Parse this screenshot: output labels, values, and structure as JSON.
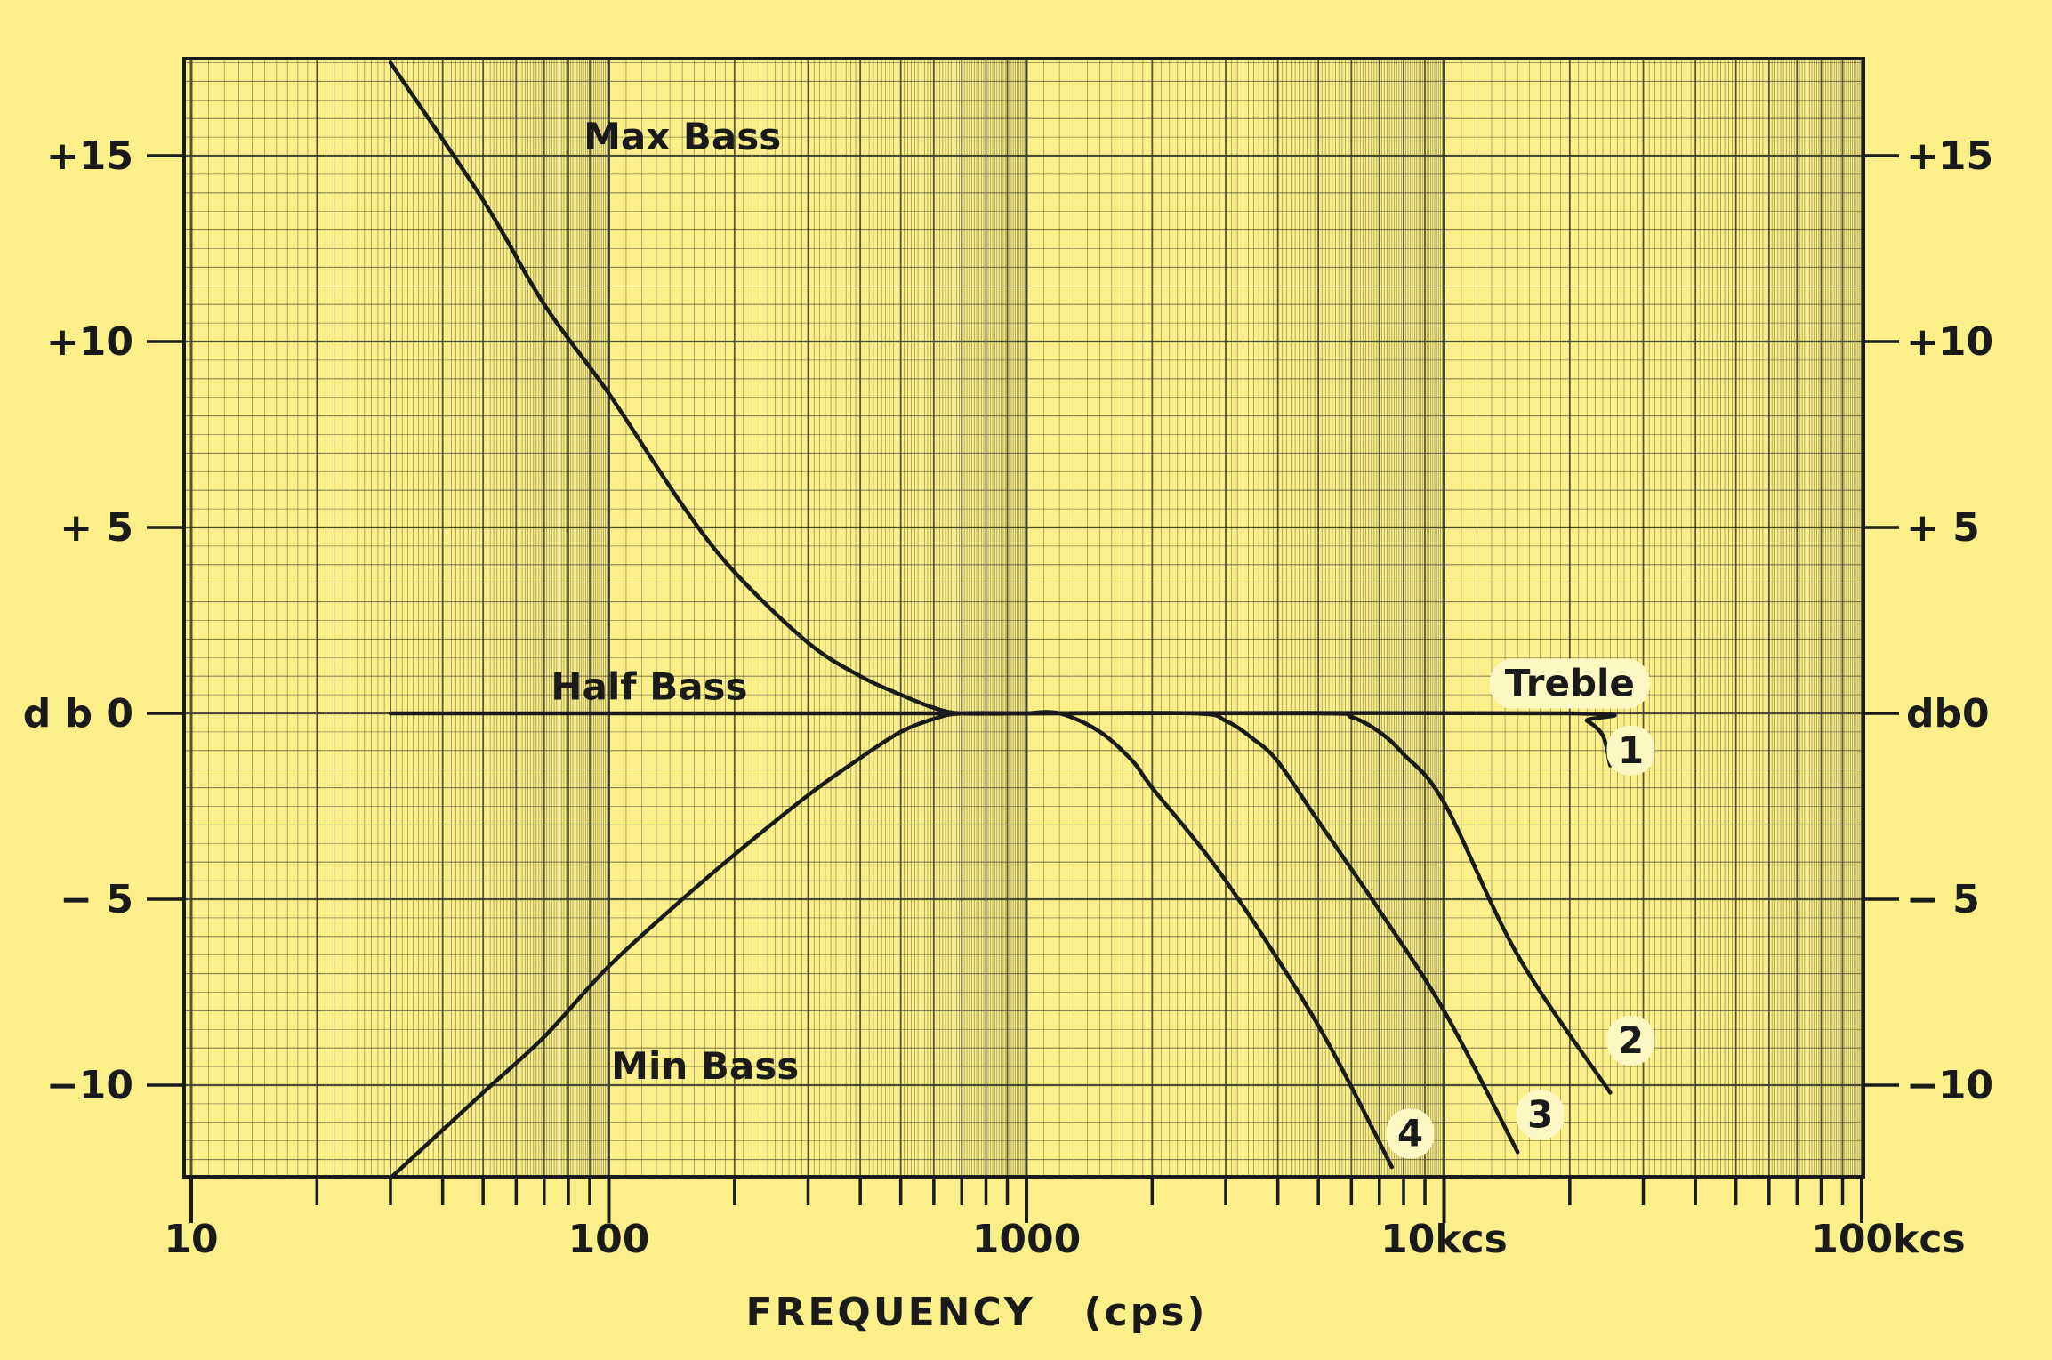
{
  "chart_data": {
    "type": "line",
    "title": "",
    "xlabel": "FREQUENCY   (cps)",
    "ylabel": "",
    "x_scale": "log",
    "xlim": [
      10,
      100000
    ],
    "ylim": [
      -12.5,
      17.5
    ],
    "grid": true,
    "x_ticks": [
      {
        "value": 10,
        "label": "10"
      },
      {
        "value": 100,
        "label": "100"
      },
      {
        "value": 1000,
        "label": "1000"
      },
      {
        "value": 10000,
        "label": "10kcs"
      },
      {
        "value": 100000,
        "label": "100kcs"
      }
    ],
    "y_ticks_left": [
      {
        "value": 15,
        "label": "+15"
      },
      {
        "value": 10,
        "label": "+10"
      },
      {
        "value": 5,
        "label": "+ 5"
      },
      {
        "value": 0,
        "label": "d b 0"
      },
      {
        "value": -5,
        "label": "− 5"
      },
      {
        "value": -10,
        "label": "−10"
      }
    ],
    "y_ticks_right": [
      {
        "value": 15,
        "label": "+15"
      },
      {
        "value": 10,
        "label": "+10"
      },
      {
        "value": 5,
        "label": "+ 5"
      },
      {
        "value": 0,
        "label": "db0"
      },
      {
        "value": -5,
        "label": "− 5"
      },
      {
        "value": -10,
        "label": "−10"
      }
    ],
    "series": [
      {
        "name": "Max Bass",
        "points": [
          [
            30,
            17.5
          ],
          [
            50,
            13.8
          ],
          [
            70,
            11.0
          ],
          [
            100,
            8.6
          ],
          [
            150,
            5.6
          ],
          [
            200,
            3.8
          ],
          [
            300,
            1.9
          ],
          [
            400,
            1.0
          ],
          [
            500,
            0.5
          ],
          [
            600,
            0.15
          ],
          [
            700,
            0.0
          ],
          [
            1000,
            0.0
          ]
        ]
      },
      {
        "name": "Half Bass",
        "points": [
          [
            30,
            0.0
          ],
          [
            1000,
            0.0
          ]
        ]
      },
      {
        "name": "Min Bass",
        "points": [
          [
            30,
            -12.5
          ],
          [
            50,
            -10.2
          ],
          [
            70,
            -8.7
          ],
          [
            100,
            -6.8
          ],
          [
            150,
            -5.0
          ],
          [
            200,
            -3.8
          ],
          [
            300,
            -2.2
          ],
          [
            400,
            -1.2
          ],
          [
            500,
            -0.5
          ],
          [
            600,
            -0.15
          ],
          [
            700,
            0.0
          ],
          [
            1000,
            0.0
          ]
        ]
      },
      {
        "name": "1",
        "points": [
          [
            1000,
            0.0
          ],
          [
            20000,
            0.0
          ],
          [
            22000,
            -0.2
          ],
          [
            24000,
            -0.6
          ],
          [
            25000,
            -1.4
          ]
        ]
      },
      {
        "name": "2",
        "points": [
          [
            1000,
            0.0
          ],
          [
            5000,
            0.0
          ],
          [
            6000,
            -0.1
          ],
          [
            7000,
            -0.5
          ],
          [
            8000,
            -1.1
          ],
          [
            10000,
            -2.4
          ],
          [
            15000,
            -6.5
          ],
          [
            25000,
            -10.2
          ]
        ]
      },
      {
        "name": "3",
        "points": [
          [
            1000,
            0.0
          ],
          [
            2500,
            0.0
          ],
          [
            3000,
            -0.2
          ],
          [
            3500,
            -0.7
          ],
          [
            4000,
            -1.3
          ],
          [
            5000,
            -2.9
          ],
          [
            7000,
            -5.3
          ],
          [
            10000,
            -8.0
          ],
          [
            15000,
            -11.8
          ]
        ]
      },
      {
        "name": "4",
        "points": [
          [
            1000,
            0.0
          ],
          [
            1200,
            0.0
          ],
          [
            1500,
            -0.5
          ],
          [
            1800,
            -1.3
          ],
          [
            2000,
            -2.0
          ],
          [
            3000,
            -4.5
          ],
          [
            5000,
            -8.4
          ],
          [
            7500,
            -12.2
          ]
        ]
      }
    ],
    "annotations": [
      {
        "text": "Max Bass",
        "x": 150,
        "y": 15.5
      },
      {
        "text": "Half Bass",
        "x": 125,
        "y": 0.7
      },
      {
        "text": "Min Bass",
        "x": 170,
        "y": -9.5
      },
      {
        "text": "Treble",
        "x": 20000,
        "y": 0.8
      },
      {
        "text": "1",
        "x": 28000,
        "y": -1.0
      },
      {
        "text": "2",
        "x": 28000,
        "y": -8.8
      },
      {
        "text": "3",
        "x": 17000,
        "y": -10.8
      },
      {
        "text": "4",
        "x": 8300,
        "y": -11.3
      }
    ]
  },
  "colors": {
    "background": "#fbef8a",
    "ink": "#1a1a1a",
    "grid": "#3a3a2a"
  }
}
